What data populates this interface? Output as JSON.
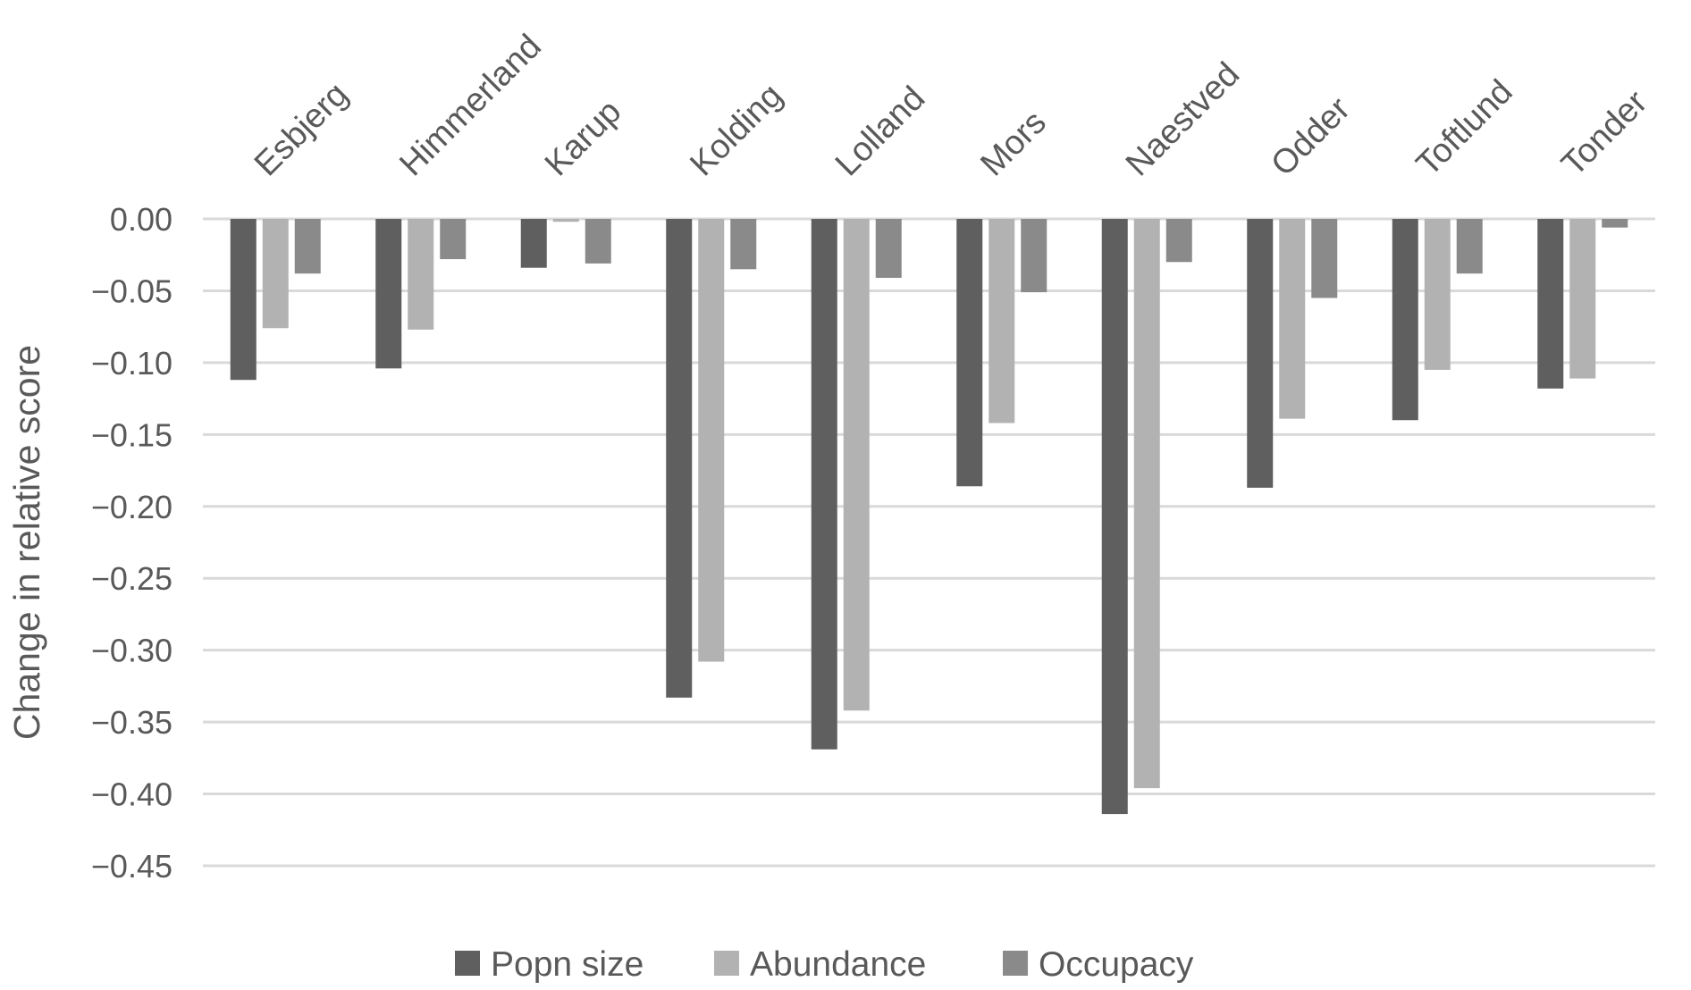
{
  "chart_data": {
    "type": "bar",
    "title": "",
    "xlabel": "",
    "ylabel": "Change in relative score",
    "ylim": [
      -0.45,
      0.0
    ],
    "yticks": [
      "0.00",
      "−0.05",
      "−0.10",
      "−0.15",
      "−0.20",
      "−0.25",
      "−0.30",
      "−0.35",
      "−0.40",
      "−0.45"
    ],
    "ytick_values": [
      0,
      -0.05,
      -0.1,
      -0.15,
      -0.2,
      -0.25,
      -0.3,
      -0.35,
      -0.4,
      -0.45
    ],
    "grid": true,
    "legend_position": "bottom",
    "categories": [
      "Esbjerg",
      "Himmerland",
      "Karup",
      "Kolding",
      "Lolland",
      "Mors",
      "Naestved",
      "Odder",
      "Toftlund",
      "Tonder"
    ],
    "series": [
      {
        "name": "Popn size",
        "color": "#5f5f5f",
        "values": [
          -0.112,
          -0.104,
          -0.034,
          -0.333,
          -0.369,
          -0.186,
          -0.414,
          -0.187,
          -0.14,
          -0.118
        ]
      },
      {
        "name": "Abundance",
        "color": "#b2b2b2",
        "values": [
          -0.076,
          -0.077,
          -0.002,
          -0.308,
          -0.342,
          -0.142,
          -0.396,
          -0.139,
          -0.105,
          -0.111
        ]
      },
      {
        "name": "Occupacy",
        "color": "#8a8a8a",
        "values": [
          -0.038,
          -0.028,
          -0.031,
          -0.035,
          -0.041,
          -0.051,
          -0.03,
          -0.055,
          -0.038,
          -0.006
        ]
      }
    ]
  }
}
